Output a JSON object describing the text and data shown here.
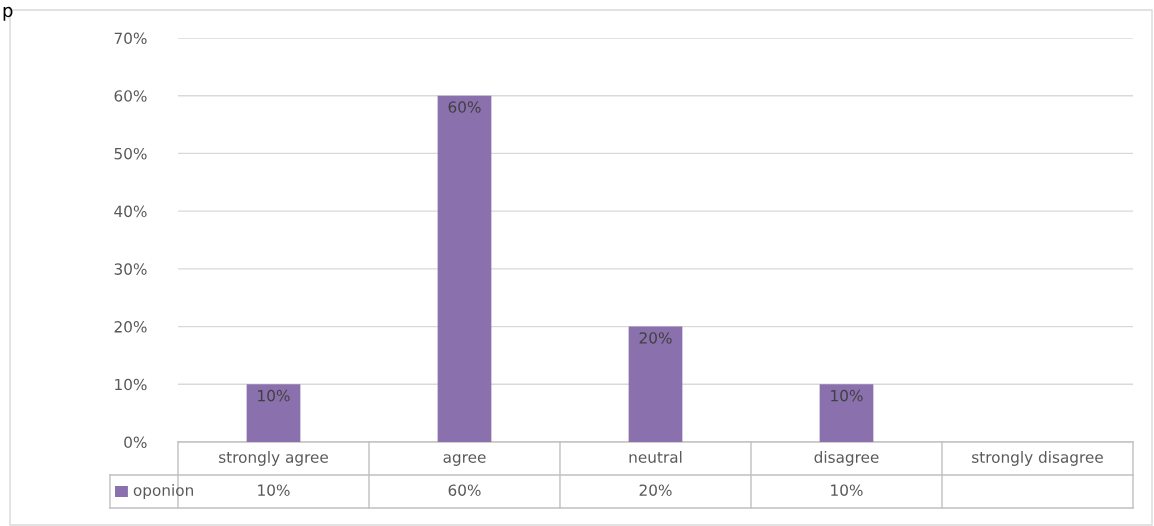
{
  "chart_data": {
    "type": "bar",
    "categories": [
      "strongly agree",
      "agree",
      "neutral",
      "disagree",
      "strongly disagree"
    ],
    "series": [
      {
        "name": "oponion",
        "color": "#8a70ad",
        "values": [
          10,
          60,
          20,
          10,
          null
        ],
        "value_labels": [
          "10%",
          "60%",
          "20%",
          "10%",
          null
        ]
      }
    ],
    "ylim": [
      0,
      70
    ],
    "yticks": [
      {
        "value": 0,
        "label": "0%"
      },
      {
        "value": 10,
        "label": "10%"
      },
      {
        "value": 20,
        "label": "20%"
      },
      {
        "value": 30,
        "label": "30%"
      },
      {
        "value": 40,
        "label": "40%"
      },
      {
        "value": 50,
        "label": "50%"
      },
      {
        "value": 60,
        "label": "60%"
      },
      {
        "value": 70,
        "label": "70%"
      }
    ],
    "grid": "y",
    "annotations": [
      "p"
    ]
  }
}
